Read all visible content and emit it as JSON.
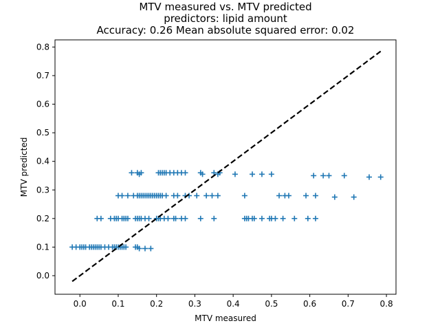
{
  "chart_data": {
    "type": "scatter",
    "title_lines": [
      "MTV measured vs. MTV predicted",
      "predictors: lipid amount",
      "Accuracy: 0.26 Mean absolute squared error: 0.02"
    ],
    "xlabel": "MTV measured",
    "ylabel": "MTV predicted",
    "xlim": [
      -0.065,
      0.825
    ],
    "ylim": [
      -0.065,
      0.825
    ],
    "x_ticks": [
      "0.0",
      "0.1",
      "0.2",
      "0.3",
      "0.4",
      "0.5",
      "0.6",
      "0.7",
      "0.8"
    ],
    "y_ticks": [
      "0.0",
      "0.1",
      "0.2",
      "0.3",
      "0.4",
      "0.5",
      "0.6",
      "0.7",
      "0.8"
    ],
    "marker": "plus",
    "color": "#1f77b4",
    "reference_line": {
      "style": "dashed",
      "color": "#000000",
      "from": [
        -0.02,
        -0.02
      ],
      "to": [
        0.785,
        0.785
      ]
    },
    "series": [
      {
        "points": [
          [
            -0.02,
            0.1
          ],
          [
            -0.01,
            0.1
          ],
          [
            0.0,
            0.1
          ],
          [
            0.005,
            0.1
          ],
          [
            0.01,
            0.1
          ],
          [
            0.015,
            0.1
          ],
          [
            0.025,
            0.1
          ],
          [
            0.03,
            0.1
          ],
          [
            0.035,
            0.1
          ],
          [
            0.04,
            0.1
          ],
          [
            0.045,
            0.1
          ],
          [
            0.05,
            0.1
          ],
          [
            0.055,
            0.1
          ],
          [
            0.065,
            0.1
          ],
          [
            0.075,
            0.1
          ],
          [
            0.085,
            0.1
          ],
          [
            0.09,
            0.1
          ],
          [
            0.095,
            0.1
          ],
          [
            0.1,
            0.1
          ],
          [
            0.105,
            0.1
          ],
          [
            0.11,
            0.1
          ],
          [
            0.115,
            0.1
          ],
          [
            0.12,
            0.1
          ],
          [
            0.145,
            0.1
          ],
          [
            0.15,
            0.1
          ],
          [
            0.155,
            0.095
          ],
          [
            0.17,
            0.095
          ],
          [
            0.185,
            0.095
          ],
          [
            0.045,
            0.2
          ],
          [
            0.055,
            0.2
          ],
          [
            0.08,
            0.2
          ],
          [
            0.09,
            0.2
          ],
          [
            0.095,
            0.2
          ],
          [
            0.1,
            0.2
          ],
          [
            0.11,
            0.2
          ],
          [
            0.115,
            0.2
          ],
          [
            0.12,
            0.2
          ],
          [
            0.125,
            0.2
          ],
          [
            0.145,
            0.2
          ],
          [
            0.15,
            0.2
          ],
          [
            0.155,
            0.2
          ],
          [
            0.16,
            0.2
          ],
          [
            0.17,
            0.2
          ],
          [
            0.18,
            0.2
          ],
          [
            0.2,
            0.2
          ],
          [
            0.205,
            0.2
          ],
          [
            0.21,
            0.2
          ],
          [
            0.22,
            0.2
          ],
          [
            0.23,
            0.2
          ],
          [
            0.245,
            0.2
          ],
          [
            0.25,
            0.2
          ],
          [
            0.265,
            0.2
          ],
          [
            0.275,
            0.2
          ],
          [
            0.315,
            0.2
          ],
          [
            0.35,
            0.2
          ],
          [
            0.43,
            0.2
          ],
          [
            0.435,
            0.2
          ],
          [
            0.44,
            0.2
          ],
          [
            0.45,
            0.2
          ],
          [
            0.455,
            0.2
          ],
          [
            0.475,
            0.2
          ],
          [
            0.495,
            0.2
          ],
          [
            0.5,
            0.2
          ],
          [
            0.51,
            0.2
          ],
          [
            0.53,
            0.2
          ],
          [
            0.56,
            0.2
          ],
          [
            0.595,
            0.2
          ],
          [
            0.615,
            0.2
          ],
          [
            0.1,
            0.28
          ],
          [
            0.11,
            0.28
          ],
          [
            0.125,
            0.28
          ],
          [
            0.14,
            0.28
          ],
          [
            0.15,
            0.28
          ],
          [
            0.155,
            0.28
          ],
          [
            0.16,
            0.28
          ],
          [
            0.165,
            0.28
          ],
          [
            0.17,
            0.28
          ],
          [
            0.175,
            0.28
          ],
          [
            0.18,
            0.28
          ],
          [
            0.185,
            0.28
          ],
          [
            0.19,
            0.28
          ],
          [
            0.195,
            0.28
          ],
          [
            0.2,
            0.28
          ],
          [
            0.205,
            0.28
          ],
          [
            0.21,
            0.28
          ],
          [
            0.215,
            0.28
          ],
          [
            0.225,
            0.28
          ],
          [
            0.245,
            0.28
          ],
          [
            0.255,
            0.28
          ],
          [
            0.275,
            0.28
          ],
          [
            0.285,
            0.28
          ],
          [
            0.305,
            0.28
          ],
          [
            0.33,
            0.28
          ],
          [
            0.345,
            0.28
          ],
          [
            0.36,
            0.28
          ],
          [
            0.43,
            0.28
          ],
          [
            0.52,
            0.28
          ],
          [
            0.535,
            0.28
          ],
          [
            0.545,
            0.28
          ],
          [
            0.59,
            0.28
          ],
          [
            0.615,
            0.28
          ],
          [
            0.665,
            0.275
          ],
          [
            0.715,
            0.275
          ],
          [
            0.135,
            0.36
          ],
          [
            0.15,
            0.36
          ],
          [
            0.155,
            0.355
          ],
          [
            0.16,
            0.36
          ],
          [
            0.205,
            0.36
          ],
          [
            0.21,
            0.36
          ],
          [
            0.215,
            0.36
          ],
          [
            0.22,
            0.36
          ],
          [
            0.225,
            0.36
          ],
          [
            0.235,
            0.36
          ],
          [
            0.245,
            0.36
          ],
          [
            0.255,
            0.36
          ],
          [
            0.265,
            0.36
          ],
          [
            0.275,
            0.36
          ],
          [
            0.315,
            0.36
          ],
          [
            0.32,
            0.355
          ],
          [
            0.35,
            0.36
          ],
          [
            0.36,
            0.355
          ],
          [
            0.365,
            0.36
          ],
          [
            0.405,
            0.355
          ],
          [
            0.45,
            0.355
          ],
          [
            0.475,
            0.355
          ],
          [
            0.5,
            0.355
          ],
          [
            0.61,
            0.35
          ],
          [
            0.635,
            0.35
          ],
          [
            0.65,
            0.35
          ],
          [
            0.69,
            0.35
          ],
          [
            0.755,
            0.345
          ],
          [
            0.785,
            0.345
          ]
        ]
      }
    ]
  }
}
